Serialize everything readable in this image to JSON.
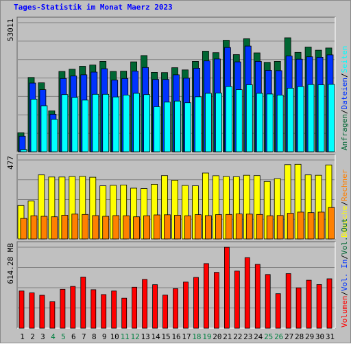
{
  "title": "Tages-Statistik im Monat Maerz 2023",
  "colors": {
    "bg": "#c0c0c0",
    "title": "#0000ff",
    "anfragen": "#006633",
    "dateien": "#0033ff",
    "seiten": "#00ffff",
    "besuche": "#ffff00",
    "rechner": "#ff8000",
    "volumen": "#ff0000",
    "weekend_day": "#008040",
    "grid": "#808080"
  },
  "chart_data": [
    {
      "type": "bar",
      "panel": "requests",
      "ymax_label": "53011",
      "ylim": [
        0,
        53011
      ],
      "x": [
        1,
        2,
        3,
        4,
        5,
        6,
        7,
        8,
        9,
        10,
        11,
        12,
        13,
        14,
        15,
        16,
        17,
        18,
        19,
        20,
        21,
        22,
        23,
        24,
        25,
        26,
        27,
        28,
        29,
        30,
        31
      ],
      "series": [
        {
          "name": "Anfragen",
          "color": "#006633",
          "values": [
            7800,
            30500,
            28300,
            16800,
            33000,
            33900,
            35100,
            35600,
            37100,
            33000,
            33100,
            36900,
            39500,
            32600,
            32500,
            34500,
            33600,
            37100,
            41300,
            40700,
            45800,
            39900,
            46400,
            40600,
            36700,
            37100,
            46800,
            40800,
            43000,
            41700,
            42600
          ]
        },
        {
          "name": "Dateien",
          "color": "#0033ff",
          "values": [
            6400,
            28200,
            25500,
            15400,
            30100,
            31100,
            31600,
            32700,
            34100,
            29400,
            30100,
            33100,
            34600,
            29700,
            29700,
            31600,
            30200,
            34300,
            37300,
            38100,
            42800,
            36900,
            43400,
            37100,
            33400,
            33300,
            39300,
            38000,
            39000,
            38800,
            39800
          ]
        },
        {
          "name": "Seiten",
          "color": "#00ffff",
          "values": [
            900,
            21600,
            18900,
            13300,
            23500,
            22300,
            21200,
            23600,
            23600,
            22500,
            23300,
            24000,
            23500,
            18500,
            20400,
            20800,
            20100,
            22600,
            24000,
            24100,
            26800,
            25500,
            27500,
            24000,
            23700,
            23300,
            26100,
            26800,
            27600,
            27500,
            27700
          ]
        }
      ]
    },
    {
      "type": "bar",
      "panel": "visits",
      "ymax_label": "477",
      "ylim": [
        0,
        477
      ],
      "x": [
        1,
        2,
        3,
        4,
        5,
        6,
        7,
        8,
        9,
        10,
        11,
        12,
        13,
        14,
        15,
        16,
        17,
        18,
        19,
        20,
        21,
        22,
        23,
        24,
        25,
        26,
        27,
        28,
        29,
        30,
        31
      ],
      "series": [
        {
          "name": "Besuche",
          "color": "#ffff00",
          "values": [
            202,
            229,
            387,
            374,
            374,
            377,
            378,
            373,
            321,
            324,
            326,
            307,
            305,
            330,
            383,
            355,
            323,
            321,
            398,
            382,
            377,
            376,
            385,
            383,
            347,
            364,
            449,
            451,
            387,
            385,
            447
          ]
        },
        {
          "name": "Rechner",
          "color": "#ff8000",
          "values": [
            124,
            140,
            137,
            134,
            143,
            150,
            148,
            141,
            137,
            141,
            140,
            134,
            140,
            145,
            146,
            143,
            140,
            147,
            141,
            147,
            148,
            151,
            150,
            148,
            140,
            142,
            155,
            162,
            159,
            162,
            190
          ]
        }
      ]
    },
    {
      "type": "bar",
      "panel": "volume",
      "ymax_label": "614.28 MB",
      "ylim": [
        0,
        614.28
      ],
      "x": [
        1,
        2,
        3,
        4,
        5,
        6,
        7,
        8,
        9,
        10,
        11,
        12,
        13,
        14,
        15,
        16,
        17,
        18,
        19,
        20,
        21,
        22,
        23,
        24,
        25,
        26,
        27,
        28,
        29,
        30,
        31
      ],
      "series": [
        {
          "name": "Volumen",
          "color": "#ff0000",
          "values": [
            282,
            268,
            250,
            201,
            295,
            317,
            388,
            292,
            255,
            282,
            228,
            311,
            370,
            330,
            251,
            300,
            350,
            385,
            490,
            423,
            614,
            433,
            535,
            484,
            407,
            262,
            414,
            306,
            364,
            331,
            375
          ]
        }
      ]
    }
  ],
  "x_axis": {
    "labels": [
      "1",
      "2",
      "3",
      "4",
      "5",
      "6",
      "7",
      "8",
      "9",
      "10",
      "11",
      "12",
      "13",
      "14",
      "15",
      "16",
      "17",
      "18",
      "19",
      "20",
      "21",
      "22",
      "23",
      "24",
      "25",
      "26",
      "27",
      "28",
      "29",
      "30",
      "31"
    ],
    "weekend_days": [
      4,
      5,
      11,
      12,
      18,
      19,
      25,
      26
    ]
  },
  "right_legend": {
    "top": [
      {
        "text": "Anfragen",
        "color": "#006633"
      },
      {
        "text": "/",
        "color": "#000000"
      },
      {
        "text": "Dateien",
        "color": "#0033ff"
      },
      {
        "text": "/",
        "color": "#000000"
      },
      {
        "text": "Seiten",
        "color": "#00ffff"
      }
    ],
    "middle": [
      {
        "text": "Besuche",
        "color": "#ffff00"
      },
      {
        "text": "/",
        "color": "#000000"
      },
      {
        "text": "Rechner",
        "color": "#ff8000"
      }
    ],
    "bottom": [
      {
        "text": "Volumen",
        "color": "#ff0000"
      },
      {
        "text": "/",
        "color": "#000000"
      },
      {
        "text": "Vol. In",
        "color": "#0033ff"
      },
      {
        "text": "/",
        "color": "#000000"
      },
      {
        "text": "Vol. Out",
        "color": "#006633"
      }
    ]
  }
}
